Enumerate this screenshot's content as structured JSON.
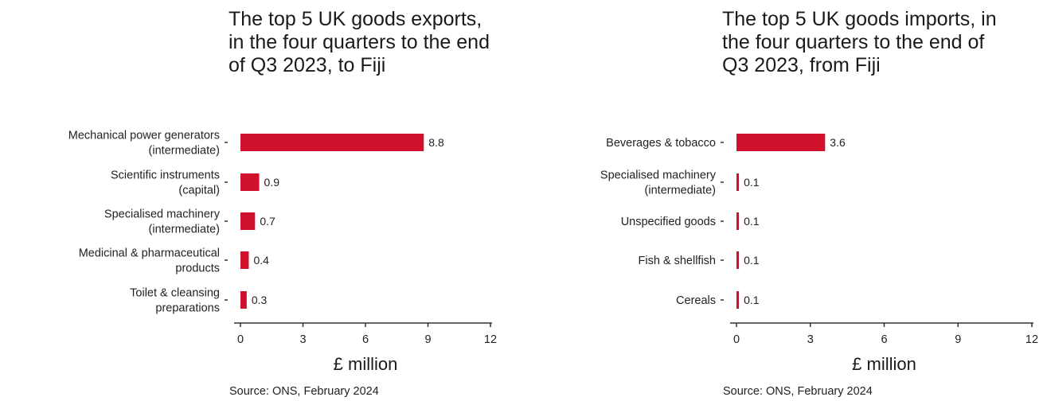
{
  "chart_data": [
    {
      "type": "bar",
      "orientation": "horizontal",
      "title": "The top 5 UK goods exports, in the four quarters to the end of Q3 2023, to Fiji",
      "xlabel": "£ million",
      "ylabel": "",
      "categories": [
        [
          "Mechanical power generators",
          "(intermediate)"
        ],
        [
          "Scientific instruments",
          "(capital)"
        ],
        [
          "Specialised machinery",
          "(intermediate)"
        ],
        [
          "Medicinal & pharmaceutical",
          "products"
        ],
        [
          "Toilet & cleansing",
          "preparations"
        ]
      ],
      "values": [
        8.8,
        0.9,
        0.7,
        0.4,
        0.3
      ],
      "value_labels": [
        "8.8",
        "0.9",
        "0.7",
        "0.4",
        "0.3"
      ],
      "xlim": [
        0,
        12
      ],
      "xticks": [
        0,
        3,
        6,
        9,
        12
      ],
      "grid": false,
      "bar_color": "#d0112b",
      "source": "Source: ONS, February 2024"
    },
    {
      "type": "bar",
      "orientation": "horizontal",
      "title": "The top 5 UK goods imports, in the four quarters to the end of Q3 2023, from Fiji",
      "xlabel": "£ million",
      "ylabel": "",
      "categories": [
        [
          "Beverages & tobacco"
        ],
        [
          "Specialised machinery",
          "(intermediate)"
        ],
        [
          "Unspecified goods"
        ],
        [
          "Fish & shellfish"
        ],
        [
          "Cereals"
        ]
      ],
      "values": [
        3.6,
        0.1,
        0.1,
        0.1,
        0.1
      ],
      "value_labels": [
        "3.6",
        "0.1",
        "0.1",
        "0.1",
        "0.1"
      ],
      "xlim": [
        0,
        12
      ],
      "xticks": [
        0,
        3,
        6,
        9,
        12
      ],
      "grid": false,
      "bar_color": "#d0112b",
      "source": "Source: ONS, February 2024"
    }
  ]
}
